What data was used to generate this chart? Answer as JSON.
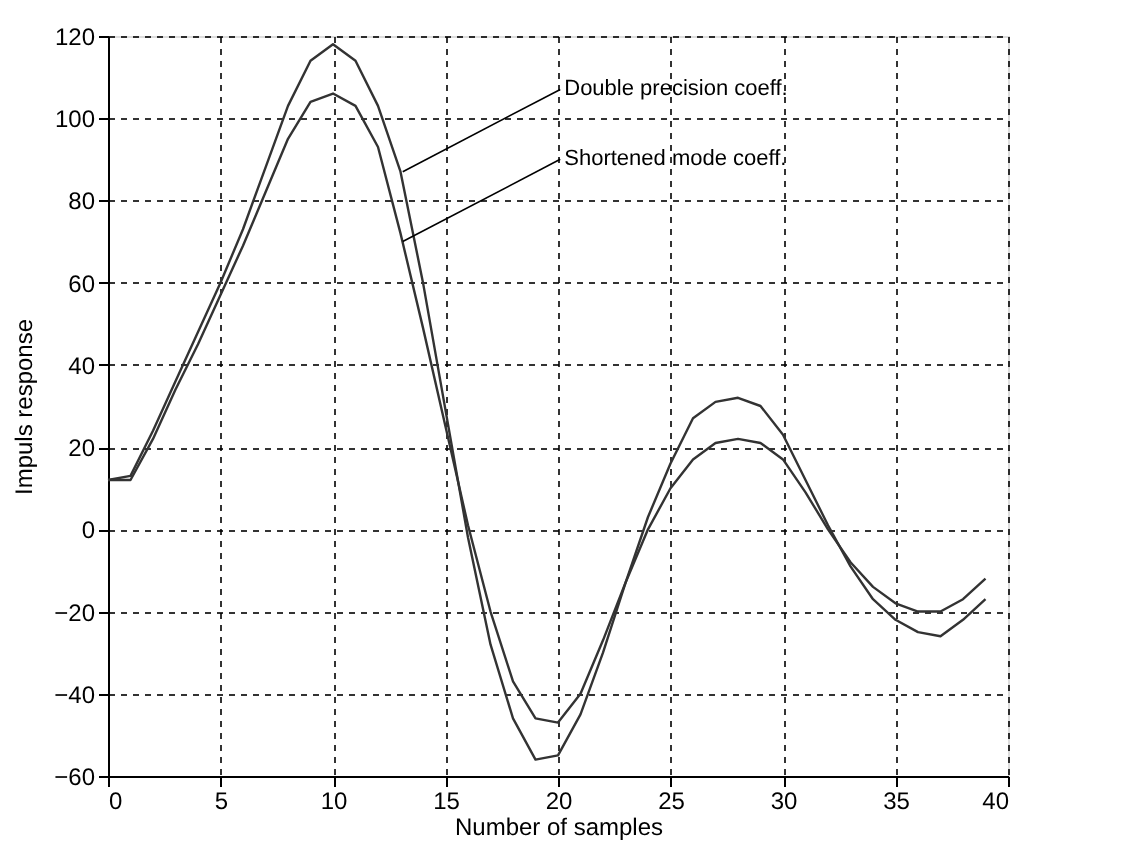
{
  "chart_data": {
    "type": "line",
    "xlabel": "Number of samples",
    "ylabel": "Impuls response",
    "x": [
      0,
      1,
      2,
      3,
      4,
      5,
      6,
      7,
      8,
      9,
      10,
      11,
      12,
      13,
      14,
      15,
      16,
      17,
      18,
      19,
      20,
      21,
      22,
      23,
      24,
      25,
      26,
      27,
      28,
      29,
      30,
      31,
      32,
      33,
      34,
      35,
      36,
      37,
      38,
      39
    ],
    "series": [
      {
        "color": "#333333",
        "values": [
          12,
          13,
          24,
          36,
          48,
          60,
          73,
          88,
          103,
          114,
          118,
          114,
          103,
          87,
          60,
          29,
          -2,
          -28,
          -46,
          -56,
          -55,
          -45,
          -30,
          -13,
          3,
          16,
          27,
          31,
          32,
          30,
          23,
          12,
          1,
          -9,
          -17,
          -22,
          -25,
          -26,
          -22,
          -17
        ]
      },
      {
        "color": "#333333",
        "values": [
          12,
          12,
          22,
          34,
          45,
          57,
          69,
          82,
          95,
          104,
          106,
          103,
          93,
          72,
          49,
          25,
          1,
          -20,
          -37,
          -46,
          -47,
          -40,
          -27,
          -13,
          0,
          10,
          17,
          21,
          22,
          21,
          17,
          9,
          0,
          -8,
          -14,
          -18,
          -20,
          -20,
          -17,
          -12
        ]
      }
    ],
    "annotations": [
      {
        "text": "Double precision coeff.",
        "x": 13.1,
        "y": 87
      },
      {
        "text": "Shortened mode coeff.",
        "x": 13.1,
        "y": 70
      }
    ],
    "xlim": [
      0,
      40
    ],
    "xticks": [
      0,
      5,
      10,
      15,
      20,
      25,
      30,
      35,
      40
    ],
    "ylim": [
      -60,
      120
    ],
    "yticks": [
      -60,
      -40,
      -20,
      0,
      20,
      40,
      60,
      80,
      100,
      120
    ],
    "grid": true,
    "line_style": "solid",
    "marker": "none"
  }
}
